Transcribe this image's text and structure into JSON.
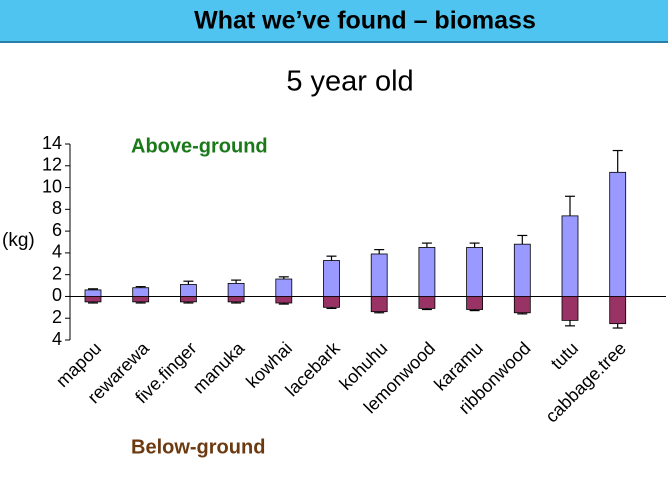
{
  "slide_title": "What we’ve found – biomass",
  "chart_data": {
    "type": "bar",
    "title": "5 year old",
    "y_label": "(kg)",
    "categories": [
      "mapou",
      "rewarewa",
      "five.finger",
      "manuka",
      "kowhai",
      "lacebark",
      "kohuhu",
      "lemonwood",
      "karamu",
      "ribbonwood",
      "tutu",
      "cabbage.tree"
    ],
    "series": [
      {
        "name": "Above-ground",
        "color": "#9999ff",
        "label_color": "#1a7a1a",
        "values": [
          0.6,
          0.8,
          1.1,
          1.2,
          1.6,
          3.3,
          3.9,
          4.5,
          4.5,
          4.8,
          7.4,
          11.4
        ],
        "errors": [
          0.1,
          0.1,
          0.3,
          0.3,
          0.2,
          0.4,
          0.4,
          0.4,
          0.4,
          0.8,
          1.8,
          2.0
        ]
      },
      {
        "name": "Below-ground",
        "color": "#993366",
        "label_color": "#6b3a10",
        "values": [
          -0.5,
          -0.5,
          -0.5,
          -0.5,
          -0.6,
          -1.0,
          -1.4,
          -1.1,
          -1.2,
          -1.5,
          -2.2,
          -2.5
        ],
        "errors": [
          0.1,
          0.1,
          0.1,
          0.1,
          0.1,
          0.1,
          0.1,
          0.1,
          0.1,
          0.1,
          0.5,
          0.4
        ]
      }
    ],
    "ylim": [
      -4,
      14
    ],
    "yticks": [
      {
        "value": -4,
        "label": "4"
      },
      {
        "value": -2,
        "label": "2"
      },
      0,
      2,
      4,
      6,
      8,
      10,
      12,
      14
    ]
  }
}
